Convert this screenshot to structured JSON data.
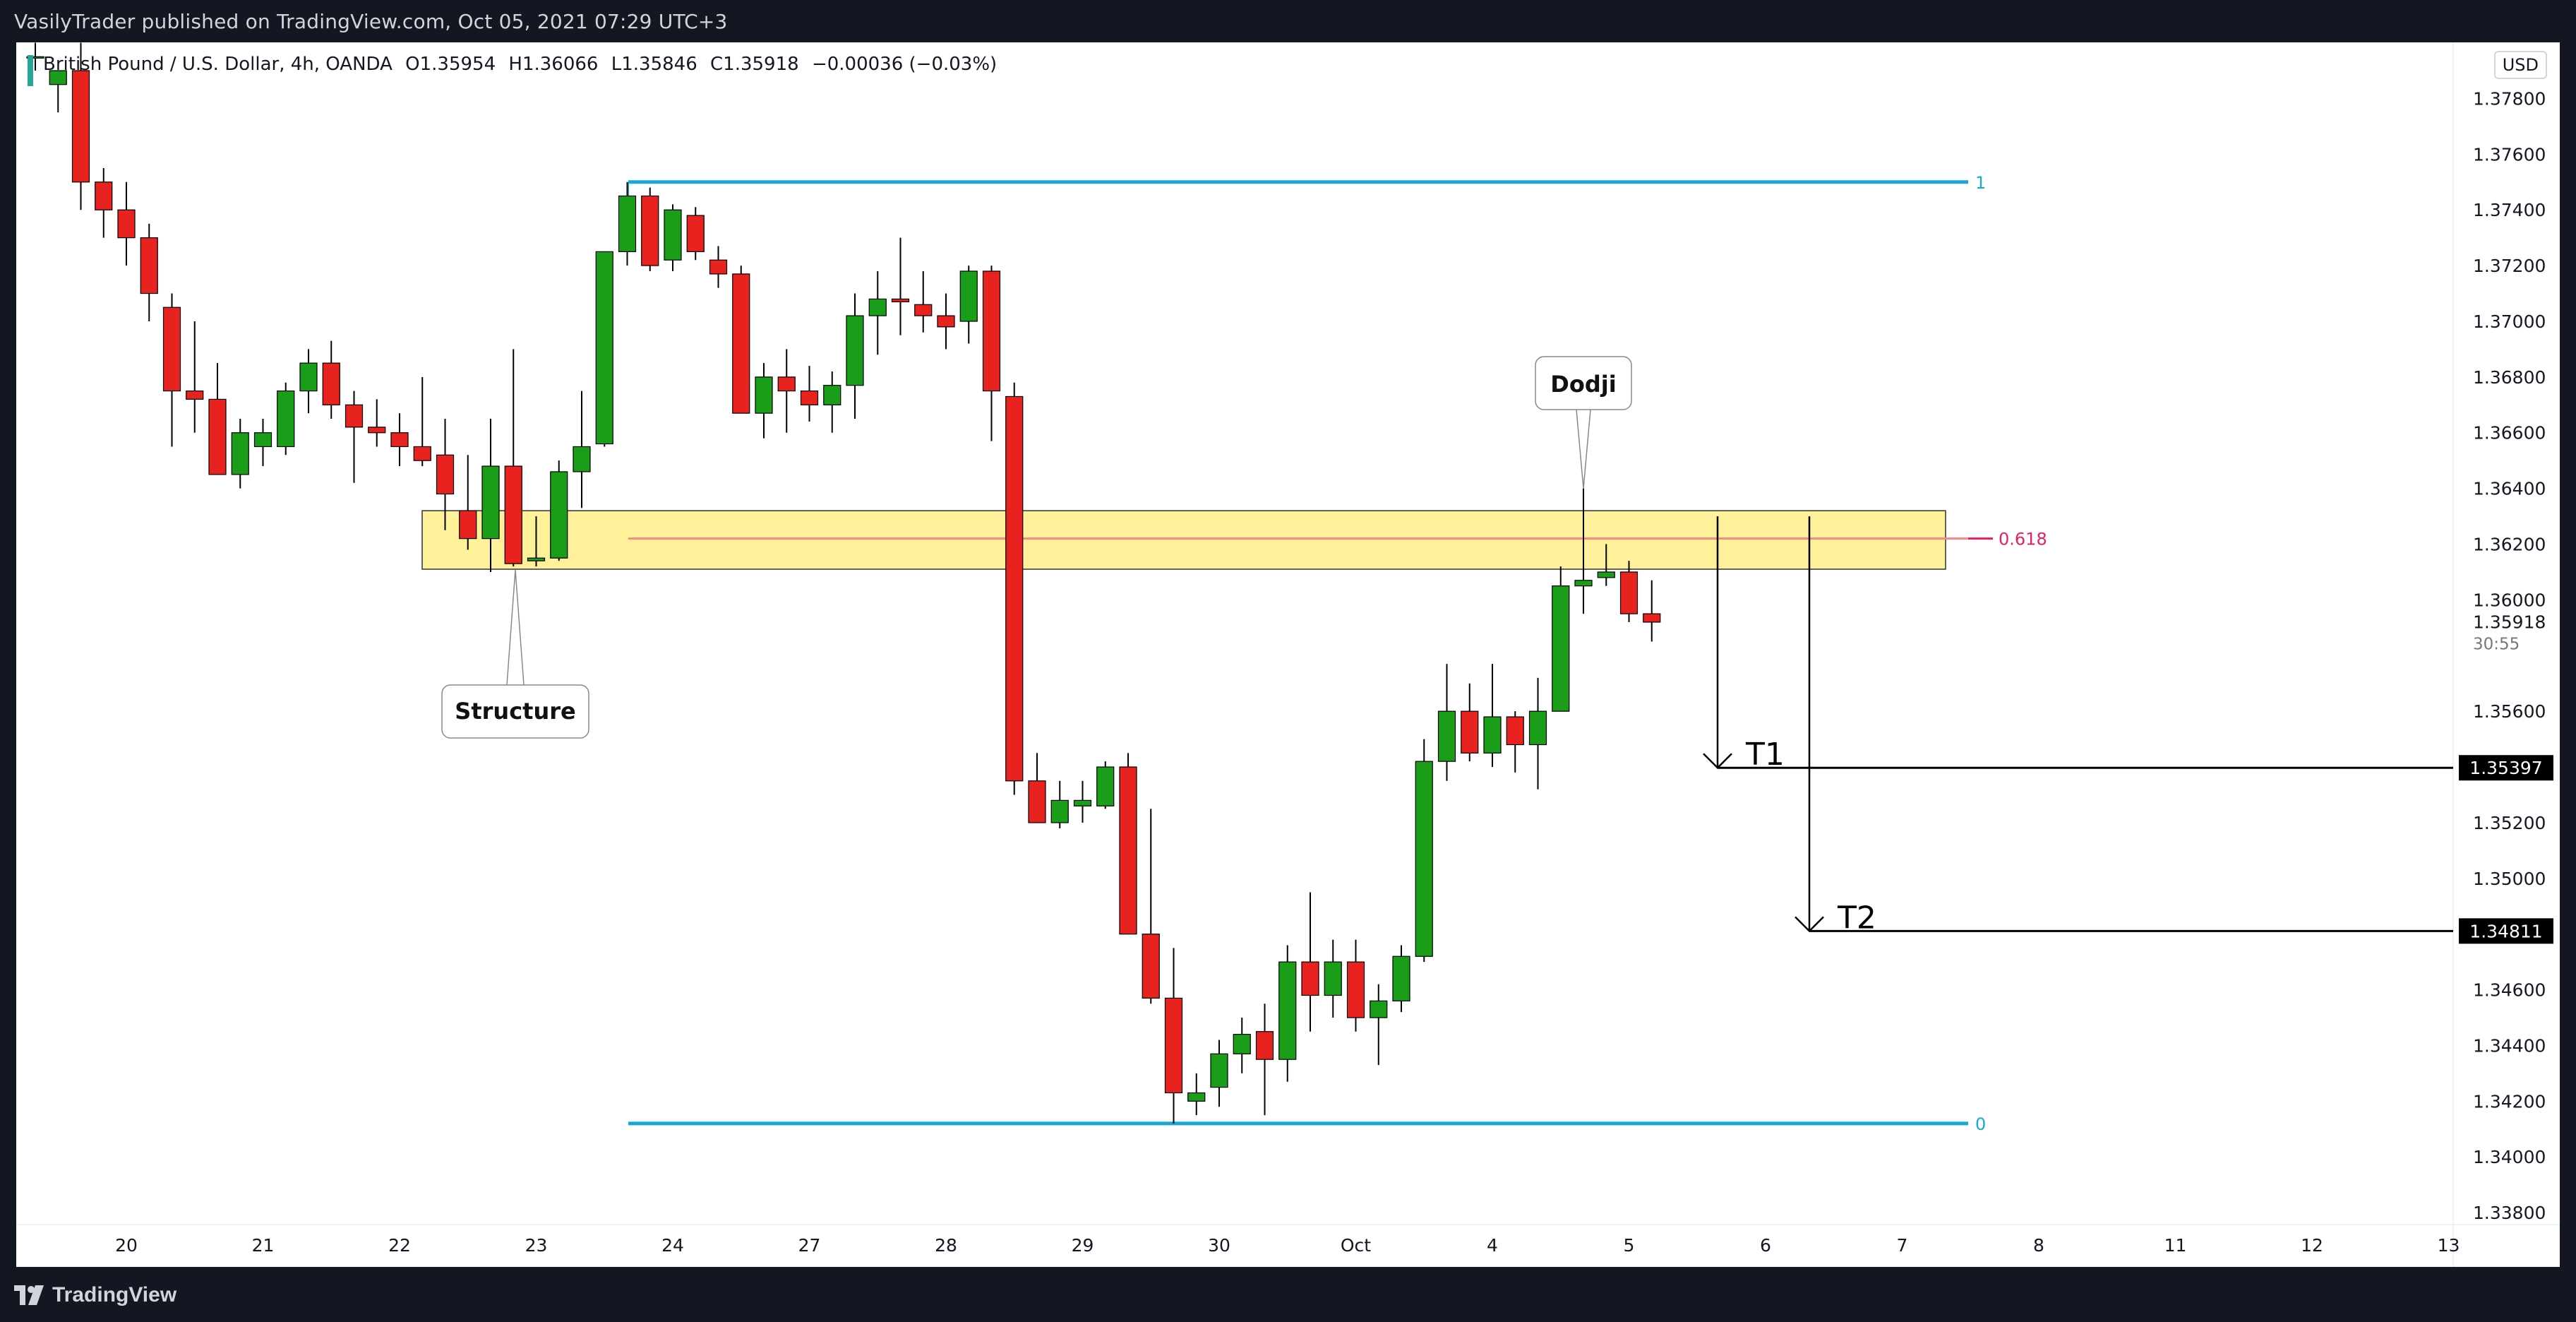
{
  "header": {
    "publisher_text": "VasilyTrader published on TradingView.com, Oct 05, 2021 07:29 UTC+3"
  },
  "legend": {
    "symbol": "British Pound / U.S. Dollar, 4h, OANDA",
    "open": "O1.35954",
    "high": "H1.36066",
    "low": "L1.35846",
    "close": "C1.35918",
    "change": "−0.00036 (−0.03%)"
  },
  "currency_badge": "USD",
  "footer": {
    "brand": "TradingView"
  },
  "colors": {
    "up": "#1a9e1a",
    "down": "#e8231f",
    "fib": "#1aa7d3",
    "zone": "#fff09a",
    "zone_line": "#f38a84",
    "fib618": "#e91e63"
  },
  "chart_data": {
    "type": "candlestick",
    "ylim": [
      1.3378,
      1.379
    ],
    "y_ticks": [
      "1.37800",
      "1.37600",
      "1.37400",
      "1.37200",
      "1.37000",
      "1.36800",
      "1.36600",
      "1.36400",
      "1.36200",
      "1.36000",
      "1.35600",
      "1.35200",
      "1.35000",
      "1.34600",
      "1.34400",
      "1.34200",
      "1.34000",
      "1.33800"
    ],
    "x_labels": [
      {
        "label": "20",
        "i": 4
      },
      {
        "label": "21",
        "i": 10
      },
      {
        "label": "22",
        "i": 16
      },
      {
        "label": "23",
        "i": 22
      },
      {
        "label": "24",
        "i": 28
      },
      {
        "label": "27",
        "i": 34
      },
      {
        "label": "28",
        "i": 40
      },
      {
        "label": "29",
        "i": 46
      },
      {
        "label": "30",
        "i": 52
      },
      {
        "label": "Oct",
        "i": 58
      },
      {
        "label": "4",
        "i": 64
      },
      {
        "label": "5",
        "i": 70
      },
      {
        "label": "6",
        "i": 76
      },
      {
        "label": "7",
        "i": 82
      },
      {
        "label": "8",
        "i": 88
      },
      {
        "label": "11",
        "i": 94
      },
      {
        "label": "12",
        "i": 100
      },
      {
        "label": "13",
        "i": 106
      }
    ],
    "candles": [
      {
        "o": 1.3795,
        "h": 1.38,
        "l": 1.379,
        "c": 1.3795
      },
      {
        "o": 1.3785,
        "h": 1.379,
        "l": 1.3775,
        "c": 1.379
      },
      {
        "o": 1.379,
        "h": 1.38,
        "l": 1.374,
        "c": 1.375
      },
      {
        "o": 1.375,
        "h": 1.3755,
        "l": 1.373,
        "c": 1.374
      },
      {
        "o": 1.374,
        "h": 1.375,
        "l": 1.372,
        "c": 1.373
      },
      {
        "o": 1.373,
        "h": 1.3735,
        "l": 1.37,
        "c": 1.371
      },
      {
        "o": 1.3705,
        "h": 1.371,
        "l": 1.3655,
        "c": 1.3675
      },
      {
        "o": 1.3675,
        "h": 1.37,
        "l": 1.366,
        "c": 1.3672
      },
      {
        "o": 1.3672,
        "h": 1.3685,
        "l": 1.3645,
        "c": 1.3645
      },
      {
        "o": 1.3645,
        "h": 1.3665,
        "l": 1.364,
        "c": 1.366
      },
      {
        "o": 1.3655,
        "h": 1.3665,
        "l": 1.3648,
        "c": 1.366
      },
      {
        "o": 1.3655,
        "h": 1.3678,
        "l": 1.3652,
        "c": 1.3675
      },
      {
        "o": 1.3675,
        "h": 1.369,
        "l": 1.3667,
        "c": 1.3685
      },
      {
        "o": 1.3685,
        "h": 1.3693,
        "l": 1.3665,
        "c": 1.367
      },
      {
        "o": 1.367,
        "h": 1.3675,
        "l": 1.3642,
        "c": 1.3662
      },
      {
        "o": 1.3662,
        "h": 1.3672,
        "l": 1.3655,
        "c": 1.366
      },
      {
        "o": 1.366,
        "h": 1.3667,
        "l": 1.3648,
        "c": 1.3655
      },
      {
        "o": 1.3655,
        "h": 1.368,
        "l": 1.3648,
        "c": 1.365
      },
      {
        "o": 1.3652,
        "h": 1.3665,
        "l": 1.3625,
        "c": 1.3638
      },
      {
        "o": 1.3632,
        "h": 1.3652,
        "l": 1.3618,
        "c": 1.3622
      },
      {
        "o": 1.3622,
        "h": 1.3665,
        "l": 1.361,
        "c": 1.3648
      },
      {
        "o": 1.3648,
        "h": 1.369,
        "l": 1.3612,
        "c": 1.3613
      },
      {
        "o": 1.3614,
        "h": 1.363,
        "l": 1.3612,
        "c": 1.3615
      },
      {
        "o": 1.3615,
        "h": 1.365,
        "l": 1.3614,
        "c": 1.3646
      },
      {
        "o": 1.3646,
        "h": 1.3675,
        "l": 1.3633,
        "c": 1.3655
      },
      {
        "o": 1.3656,
        "h": 1.3725,
        "l": 1.3655,
        "c": 1.3725
      },
      {
        "o": 1.3725,
        "h": 1.375,
        "l": 1.372,
        "c": 1.3745
      },
      {
        "o": 1.3745,
        "h": 1.3748,
        "l": 1.3718,
        "c": 1.372
      },
      {
        "o": 1.3722,
        "h": 1.3742,
        "l": 1.3718,
        "c": 1.374
      },
      {
        "o": 1.3738,
        "h": 1.3741,
        "l": 1.3722,
        "c": 1.3725
      },
      {
        "o": 1.3722,
        "h": 1.3727,
        "l": 1.3712,
        "c": 1.3717
      },
      {
        "o": 1.3717,
        "h": 1.372,
        "l": 1.3667,
        "c": 1.3667
      },
      {
        "o": 1.3667,
        "h": 1.3685,
        "l": 1.3658,
        "c": 1.368
      },
      {
        "o": 1.368,
        "h": 1.369,
        "l": 1.366,
        "c": 1.3675
      },
      {
        "o": 1.3675,
        "h": 1.3684,
        "l": 1.3664,
        "c": 1.367
      },
      {
        "o": 1.367,
        "h": 1.3682,
        "l": 1.366,
        "c": 1.3677
      },
      {
        "o": 1.3677,
        "h": 1.371,
        "l": 1.3665,
        "c": 1.3702
      },
      {
        "o": 1.3702,
        "h": 1.3718,
        "l": 1.3688,
        "c": 1.3708
      },
      {
        "o": 1.3708,
        "h": 1.373,
        "l": 1.3695,
        "c": 1.3707
      },
      {
        "o": 1.3706,
        "h": 1.3718,
        "l": 1.3696,
        "c": 1.3702
      },
      {
        "o": 1.3702,
        "h": 1.371,
        "l": 1.369,
        "c": 1.3698
      },
      {
        "o": 1.37,
        "h": 1.372,
        "l": 1.3692,
        "c": 1.3718
      },
      {
        "o": 1.3718,
        "h": 1.372,
        "l": 1.3657,
        "c": 1.3675
      },
      {
        "o": 1.3673,
        "h": 1.3678,
        "l": 1.353,
        "c": 1.3535
      },
      {
        "o": 1.3535,
        "h": 1.3545,
        "l": 1.352,
        "c": 1.352
      },
      {
        "o": 1.352,
        "h": 1.3535,
        "l": 1.3518,
        "c": 1.3528
      },
      {
        "o": 1.3526,
        "h": 1.3535,
        "l": 1.352,
        "c": 1.3528
      },
      {
        "o": 1.3526,
        "h": 1.3542,
        "l": 1.3525,
        "c": 1.354
      },
      {
        "o": 1.354,
        "h": 1.3545,
        "l": 1.348,
        "c": 1.348
      },
      {
        "o": 1.348,
        "h": 1.3525,
        "l": 1.3455,
        "c": 1.3457
      },
      {
        "o": 1.3457,
        "h": 1.3475,
        "l": 1.3412,
        "c": 1.3423
      },
      {
        "o": 1.342,
        "h": 1.343,
        "l": 1.3415,
        "c": 1.3423
      },
      {
        "o": 1.3425,
        "h": 1.3442,
        "l": 1.3418,
        "c": 1.3437
      },
      {
        "o": 1.3437,
        "h": 1.345,
        "l": 1.343,
        "c": 1.3444
      },
      {
        "o": 1.3445,
        "h": 1.3455,
        "l": 1.3415,
        "c": 1.3435
      },
      {
        "o": 1.3435,
        "h": 1.3476,
        "l": 1.3427,
        "c": 1.347
      },
      {
        "o": 1.347,
        "h": 1.3495,
        "l": 1.3445,
        "c": 1.3458
      },
      {
        "o": 1.3458,
        "h": 1.3478,
        "l": 1.345,
        "c": 1.347
      },
      {
        "o": 1.347,
        "h": 1.3478,
        "l": 1.3445,
        "c": 1.345
      },
      {
        "o": 1.345,
        "h": 1.3462,
        "l": 1.3433,
        "c": 1.3456
      },
      {
        "o": 1.3456,
        "h": 1.3476,
        "l": 1.3452,
        "c": 1.3472
      },
      {
        "o": 1.3472,
        "h": 1.355,
        "l": 1.347,
        "c": 1.3542
      },
      {
        "o": 1.3542,
        "h": 1.3577,
        "l": 1.3535,
        "c": 1.356
      },
      {
        "o": 1.356,
        "h": 1.357,
        "l": 1.3542,
        "c": 1.3545
      },
      {
        "o": 1.3545,
        "h": 1.3577,
        "l": 1.354,
        "c": 1.3558
      },
      {
        "o": 1.3558,
        "h": 1.356,
        "l": 1.3538,
        "c": 1.3548
      },
      {
        "o": 1.3548,
        "h": 1.3572,
        "l": 1.3532,
        "c": 1.356
      },
      {
        "o": 1.356,
        "h": 1.3612,
        "l": 1.356,
        "c": 1.3605
      },
      {
        "o": 1.3605,
        "h": 1.364,
        "l": 1.3595,
        "c": 1.3607
      },
      {
        "o": 1.3608,
        "h": 1.362,
        "l": 1.3605,
        "c": 1.361
      },
      {
        "o": 1.361,
        "h": 1.3614,
        "l": 1.3592,
        "c": 1.3595
      },
      {
        "o": 1.3595,
        "h": 1.3607,
        "l": 1.3585,
        "c": 1.3592
      }
    ],
    "fib_levels": [
      {
        "label": "1",
        "price": 1.375
      },
      {
        "label": "0.618",
        "price": 1.3622
      },
      {
        "label": "0",
        "price": 1.3412
      }
    ],
    "zone": {
      "top": 1.3632,
      "bottom": 1.3611
    },
    "price_labels": [
      {
        "label": "1.35397",
        "price": 1.35397
      },
      {
        "label": "1.34811",
        "price": 1.34811
      }
    ],
    "last_price": {
      "label": "1.35918",
      "countdown": "30:55"
    },
    "annotations": [
      {
        "label": "Structure"
      },
      {
        "label": "Dodji"
      },
      {
        "label": "T1"
      },
      {
        "label": "T2"
      }
    ]
  }
}
